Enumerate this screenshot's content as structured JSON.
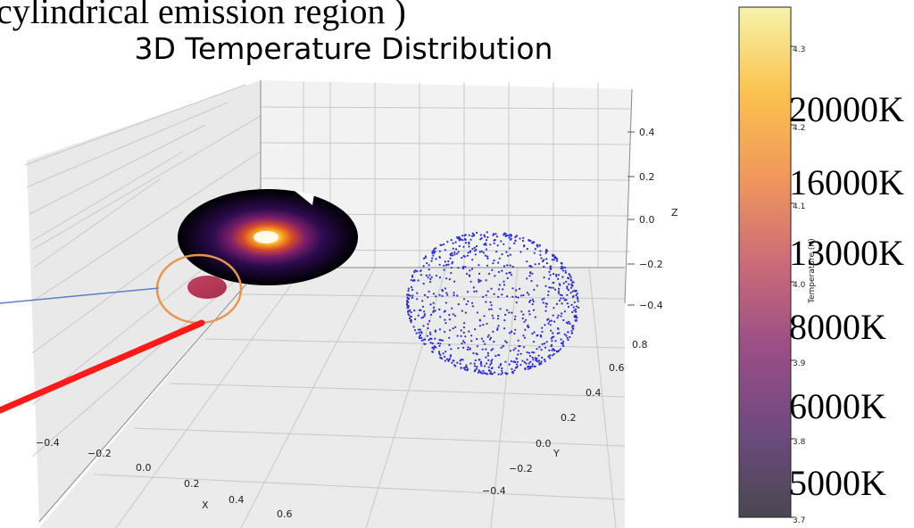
{
  "header": {
    "clipped_top_text": "cylindrical emission region )"
  },
  "chart_data": {
    "type": "scatter",
    "title": "3D Temperature Distribution",
    "projection": "3d",
    "axes": {
      "x": {
        "label": "X",
        "range": [
          -0.55,
          0.75
        ],
        "ticks": [
          "−0.4",
          "−0.2",
          "0.0",
          "0.2",
          "0.4",
          "0.6"
        ]
      },
      "y": {
        "label": "Y",
        "range": [
          -0.55,
          0.85
        ],
        "ticks": [
          "−0.4",
          "−0.2",
          "0.0",
          "0.2",
          "0.4",
          "0.6",
          "0.8"
        ]
      },
      "z": {
        "label": "Z",
        "range": [
          -0.5,
          0.5
        ],
        "ticks": [
          "−0.4",
          "−0.2",
          "0.0",
          "0.2",
          "0.4"
        ]
      }
    },
    "grid": true,
    "elements": [
      {
        "name": "accretion disk",
        "kind": "disk",
        "colormap": "inferno",
        "center": [
          0.0,
          0.0,
          0.0
        ]
      },
      {
        "name": "emission region",
        "kind": "cylinder",
        "color": "#c8405a",
        "center": [
          0.0,
          0.0,
          -0.3
        ]
      },
      {
        "name": "companion sphere",
        "kind": "point-shell",
        "color": "#2a2ad8",
        "center": [
          0.4,
          0.6,
          -0.2
        ]
      }
    ],
    "colorbar": {
      "label": "Temperature (K)",
      "colormap": "inferno",
      "range": [
        3.7,
        4.35
      ],
      "ticks": [
        "3.7",
        "3.8",
        "3.9",
        "4.0",
        "4.1",
        "4.2",
        "4.3"
      ],
      "stop_colors": [
        "#4a4750",
        "#6e4a80",
        "#9a4e86",
        "#cc6b78",
        "#f1985c",
        "#fbc24e",
        "#f6f3aa"
      ]
    },
    "overlay_labels": [
      "20000K",
      "16000K",
      "13000K",
      "8000K",
      "6000K",
      "5000K"
    ],
    "annotations": [
      {
        "kind": "ellipse",
        "color": "#e8964a",
        "target": "emission region"
      },
      {
        "kind": "pointer-line",
        "color": "#5a80c8",
        "target": "emission region"
      },
      {
        "kind": "arrow",
        "color": "#ff1a1a",
        "target": "emission region"
      }
    ]
  }
}
